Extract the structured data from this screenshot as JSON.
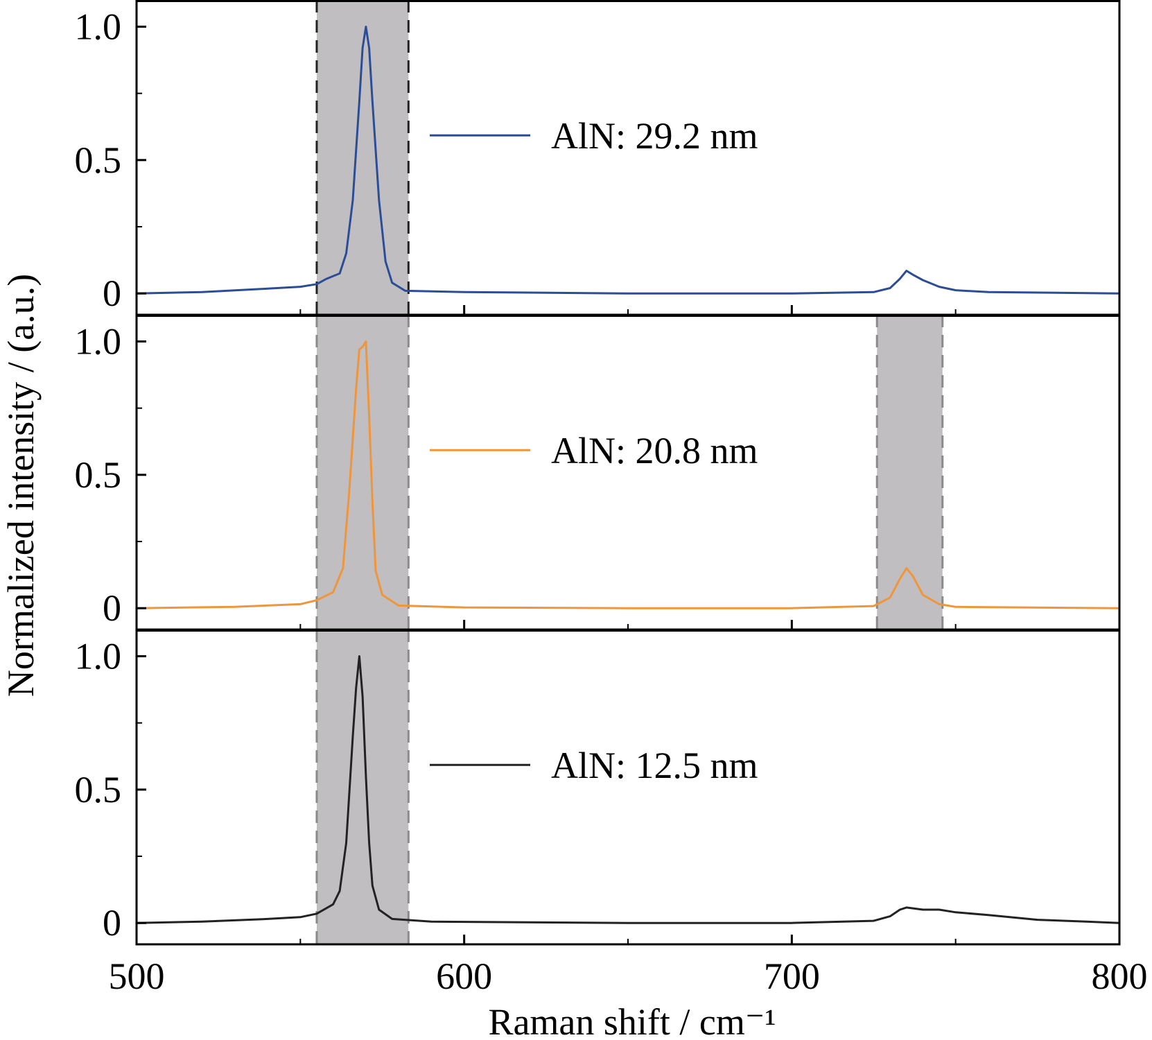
{
  "chart_data": {
    "type": "line",
    "layout": "stacked-panels",
    "xlabel": "Raman shift / cm⁻¹",
    "ylabel": "Normalized intensity / (a.u.)",
    "xlim": [
      500,
      800
    ],
    "xticks": [
      500,
      600,
      700,
      800
    ],
    "yticks": [
      0,
      0.5,
      1.0
    ],
    "ytick_labels": [
      "0",
      "0.5",
      "1.0"
    ],
    "ylim": [
      -0.08,
      1.1
    ],
    "panels": [
      {
        "series": {
          "name": "AlN: 29.2 nm",
          "color": "#2b4d96",
          "points": [
            [
              500,
              0.0
            ],
            [
              520,
              0.005
            ],
            [
              540,
              0.018
            ],
            [
              550,
              0.025
            ],
            [
              555,
              0.035
            ],
            [
              558,
              0.055
            ],
            [
              562,
              0.075
            ],
            [
              564,
              0.15
            ],
            [
              566,
              0.35
            ],
            [
              568,
              0.72
            ],
            [
              569,
              0.92
            ],
            [
              570,
              1.0
            ],
            [
              571,
              0.92
            ],
            [
              572,
              0.72
            ],
            [
              574,
              0.35
            ],
            [
              576,
              0.12
            ],
            [
              578,
              0.04
            ],
            [
              582,
              0.01
            ],
            [
              600,
              0.005
            ],
            [
              650,
              0.0
            ],
            [
              700,
              0.0
            ],
            [
              725,
              0.005
            ],
            [
              730,
              0.02
            ],
            [
              733,
              0.055
            ],
            [
              735,
              0.085
            ],
            [
              737,
              0.07
            ],
            [
              740,
              0.05
            ],
            [
              745,
              0.025
            ],
            [
              750,
              0.012
            ],
            [
              760,
              0.005
            ],
            [
              800,
              0.0
            ]
          ]
        },
        "bands": [
          {
            "x": [
              555,
              583
            ],
            "color": "#c0bec1",
            "edge": "#222222"
          }
        ]
      },
      {
        "series": {
          "name": "AlN: 20.8 nm",
          "color": "#f0963a",
          "points": [
            [
              500,
              0.0
            ],
            [
              530,
              0.005
            ],
            [
              550,
              0.015
            ],
            [
              555,
              0.03
            ],
            [
              560,
              0.06
            ],
            [
              563,
              0.15
            ],
            [
              565,
              0.45
            ],
            [
              567,
              0.82
            ],
            [
              568,
              0.97
            ],
            [
              569,
              0.98
            ],
            [
              570,
              1.0
            ],
            [
              571,
              0.72
            ],
            [
              572,
              0.4
            ],
            [
              573,
              0.14
            ],
            [
              575,
              0.05
            ],
            [
              580,
              0.01
            ],
            [
              600,
              0.003
            ],
            [
              650,
              0.0
            ],
            [
              700,
              0.0
            ],
            [
              725,
              0.008
            ],
            [
              730,
              0.04
            ],
            [
              733,
              0.11
            ],
            [
              735,
              0.15
            ],
            [
              737,
              0.12
            ],
            [
              740,
              0.05
            ],
            [
              745,
              0.015
            ],
            [
              750,
              0.005
            ],
            [
              800,
              0.0
            ]
          ]
        },
        "bands": [
          {
            "x": [
              555,
              583
            ],
            "color": "#c0bec1",
            "edge": "#8a8a8a"
          },
          {
            "x": [
              726,
              746
            ],
            "color": "#c0bec1",
            "edge": "#8a8a8a"
          }
        ]
      },
      {
        "series": {
          "name": "AlN: 12.5 nm",
          "color": "#222222",
          "points": [
            [
              500,
              0.0
            ],
            [
              520,
              0.005
            ],
            [
              540,
              0.015
            ],
            [
              550,
              0.022
            ],
            [
              555,
              0.035
            ],
            [
              560,
              0.07
            ],
            [
              562,
              0.12
            ],
            [
              564,
              0.3
            ],
            [
              566,
              0.7
            ],
            [
              567,
              0.88
            ],
            [
              568,
              1.0
            ],
            [
              569,
              0.85
            ],
            [
              570,
              0.55
            ],
            [
              571,
              0.3
            ],
            [
              572,
              0.14
            ],
            [
              574,
              0.05
            ],
            [
              578,
              0.015
            ],
            [
              590,
              0.005
            ],
            [
              650,
              0.0
            ],
            [
              700,
              0.0
            ],
            [
              725,
              0.008
            ],
            [
              730,
              0.025
            ],
            [
              733,
              0.05
            ],
            [
              735,
              0.058
            ],
            [
              740,
              0.05
            ],
            [
              745,
              0.05
            ],
            [
              750,
              0.04
            ],
            [
              760,
              0.03
            ],
            [
              775,
              0.012
            ],
            [
              790,
              0.005
            ],
            [
              800,
              0.0
            ]
          ]
        },
        "bands": [
          {
            "x": [
              555,
              583
            ],
            "color": "#c0bec1",
            "edge": "#8a8a8a"
          }
        ]
      }
    ],
    "legend_placement": "center of each panel",
    "grid": false
  }
}
